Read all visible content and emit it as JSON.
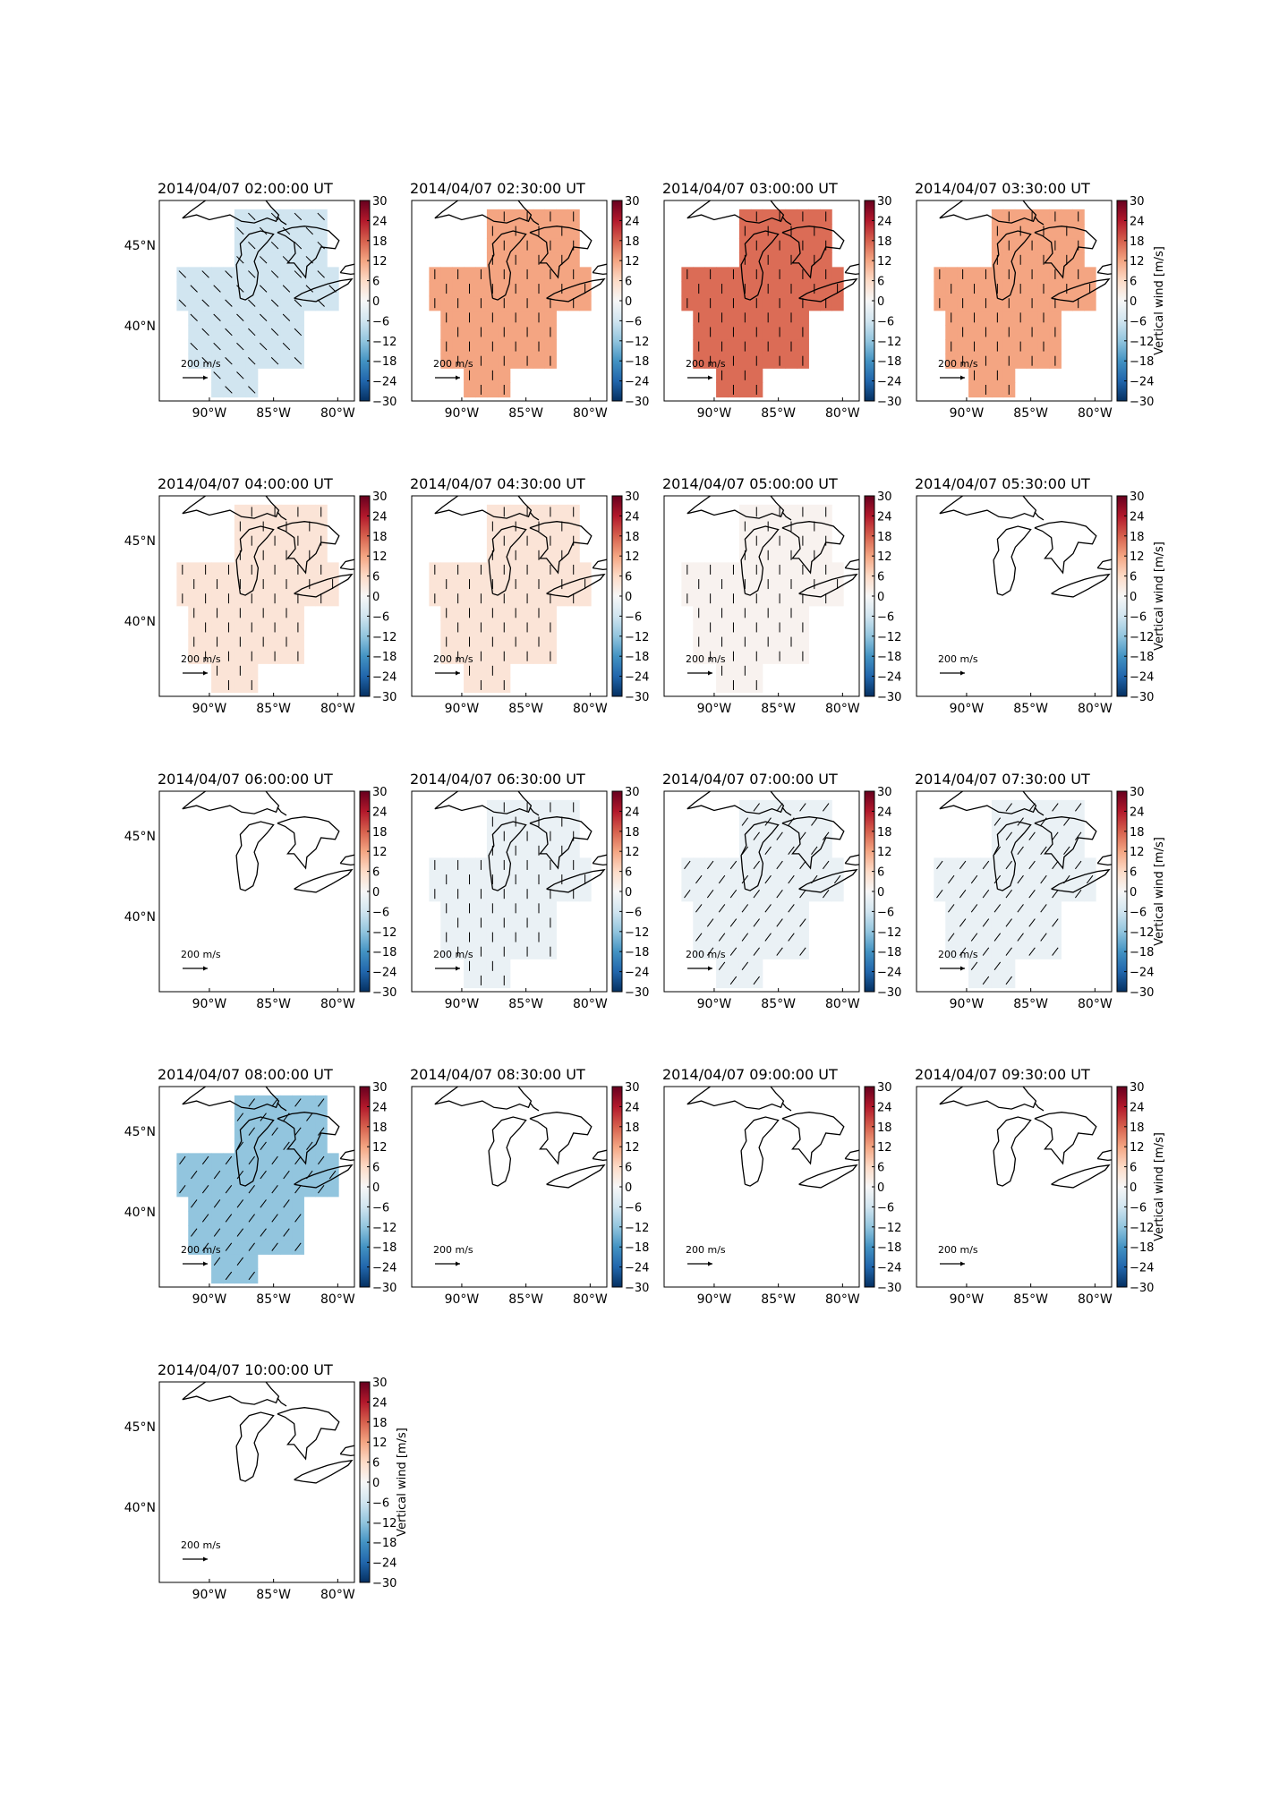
{
  "figure": {
    "colorbar_label": "Vertical wind [m/s]",
    "colorbar_ticks": [
      "30",
      "24",
      "18",
      "12",
      "6",
      "0",
      "−6",
      "−12",
      "−18",
      "−24",
      "−30"
    ],
    "x_ticks": [
      "90°W",
      "85°W",
      "80°W"
    ],
    "y_ticks": [
      "45°N",
      "40°N"
    ],
    "vector_key_label": "200 m/s",
    "colors": {
      "positive_max": "#67001f",
      "zero": "#f7f7f7",
      "negative_max": "#053061"
    }
  },
  "chart_data": [
    {
      "type": "heatmap",
      "title": "2014/04/07 02:00:00 UT",
      "value": -6,
      "has_data": true,
      "wind_dir": "SE"
    },
    {
      "type": "heatmap",
      "title": "2014/04/07 02:30:00 UT",
      "value": 12,
      "has_data": true,
      "wind_dir": "S"
    },
    {
      "type": "heatmap",
      "title": "2014/04/07 03:00:00 UT",
      "value": 17,
      "has_data": true,
      "wind_dir": "S"
    },
    {
      "type": "heatmap",
      "title": "2014/04/07 03:30:00 UT",
      "value": 12,
      "has_data": true,
      "wind_dir": "S"
    },
    {
      "type": "heatmap",
      "title": "2014/04/07 04:00:00 UT",
      "value": 4,
      "has_data": true,
      "wind_dir": "S"
    },
    {
      "type": "heatmap",
      "title": "2014/04/07 04:30:00 UT",
      "value": 4,
      "has_data": true,
      "wind_dir": "S"
    },
    {
      "type": "heatmap",
      "title": "2014/04/07 05:00:00 UT",
      "value": 1,
      "has_data": true,
      "wind_dir": "S"
    },
    {
      "type": "heatmap",
      "title": "2014/04/07 05:30:00 UT",
      "value": 0,
      "has_data": false,
      "wind_dir": ""
    },
    {
      "type": "heatmap",
      "title": "2014/04/07 06:00:00 UT",
      "value": 0,
      "has_data": false,
      "wind_dir": ""
    },
    {
      "type": "heatmap",
      "title": "2014/04/07 06:30:00 UT",
      "value": -2,
      "has_data": true,
      "wind_dir": "S"
    },
    {
      "type": "heatmap",
      "title": "2014/04/07 07:00:00 UT",
      "value": -2,
      "has_data": true,
      "wind_dir": "SW"
    },
    {
      "type": "heatmap",
      "title": "2014/04/07 07:30:00 UT",
      "value": -2,
      "has_data": true,
      "wind_dir": "SW"
    },
    {
      "type": "heatmap",
      "title": "2014/04/07 08:00:00 UT",
      "value": -12,
      "has_data": true,
      "wind_dir": "SW"
    },
    {
      "type": "heatmap",
      "title": "2014/04/07 08:30:00 UT",
      "value": 0,
      "has_data": false,
      "wind_dir": ""
    },
    {
      "type": "heatmap",
      "title": "2014/04/07 09:00:00 UT",
      "value": 0,
      "has_data": false,
      "wind_dir": ""
    },
    {
      "type": "heatmap",
      "title": "2014/04/07 09:30:00 UT",
      "value": 0,
      "has_data": false,
      "wind_dir": ""
    },
    {
      "type": "heatmap",
      "title": "2014/04/07 10:00:00 UT",
      "value": 0,
      "has_data": false,
      "wind_dir": ""
    }
  ]
}
